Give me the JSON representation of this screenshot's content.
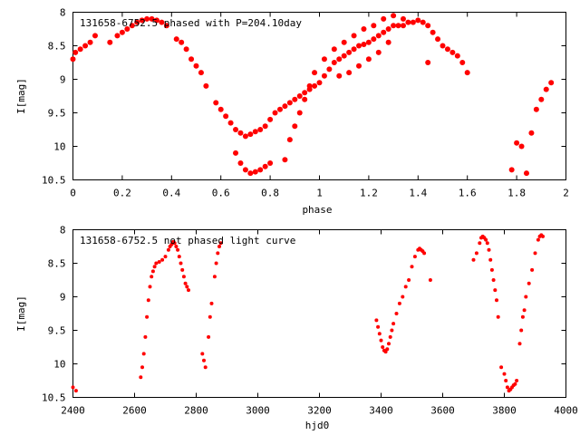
{
  "chart_data": [
    {
      "type": "scatter",
      "title": "131658-6752.5 phased with P=204.10day",
      "xlabel": "phase",
      "ylabel": "I[mag]",
      "xlim": [
        0,
        2
      ],
      "ylim": [
        10.5,
        8
      ],
      "y_inverted": true,
      "xticks": [
        "0",
        "0.2",
        "0.4",
        "0.6",
        "0.8",
        "1",
        "1.2",
        "1.4",
        "1.6",
        "1.8",
        "2"
      ],
      "yticks": [
        "8",
        "8.5",
        "9",
        "9.5",
        "10",
        "10.5"
      ],
      "grid": false,
      "marker_color": "#ff0000",
      "marker": "filled-circle",
      "series": [
        {
          "x": [
            0.0,
            0.01,
            0.03,
            0.05,
            0.07,
            0.09,
            0.15,
            0.18,
            0.2,
            0.22,
            0.24,
            0.26,
            0.28,
            0.3,
            0.32,
            0.34,
            0.36,
            0.38,
            0.42,
            0.44,
            0.46,
            0.48,
            0.5,
            0.52,
            0.54,
            0.58,
            0.6,
            0.62,
            0.64,
            0.66,
            0.68,
            0.7,
            0.72,
            0.74,
            0.76,
            0.78,
            0.8,
            0.82,
            0.84,
            0.86,
            0.88,
            0.9,
            0.92,
            0.94,
            0.96,
            0.98,
            1.0,
            1.02,
            1.04,
            1.06,
            1.08,
            1.1,
            1.12,
            1.14,
            1.16,
            1.18,
            1.2,
            1.22,
            1.24,
            1.26,
            1.28,
            1.3,
            1.32,
            1.34,
            1.36,
            1.38,
            1.4,
            1.42,
            1.44,
            1.46,
            1.48,
            1.5,
            1.52,
            1.54,
            1.56,
            1.58,
            1.6,
            1.78,
            1.8,
            1.82,
            1.84,
            1.86,
            1.88,
            1.9,
            1.92,
            1.94,
            0.66,
            0.68,
            0.7,
            0.72,
            0.74,
            0.76,
            0.78,
            0.8,
            0.86,
            0.88,
            0.9,
            0.92,
            0.94,
            0.96,
            0.98,
            1.02,
            1.06,
            1.1,
            1.14,
            1.18,
            1.22,
            1.26,
            1.3,
            1.34,
            1.28,
            1.24,
            1.2,
            1.16,
            1.12,
            1.08,
            1.44
          ],
          "y": [
            8.7,
            8.6,
            8.55,
            8.5,
            8.45,
            8.35,
            8.45,
            8.35,
            8.3,
            8.25,
            8.2,
            8.15,
            8.12,
            8.1,
            8.1,
            8.12,
            8.15,
            8.2,
            8.4,
            8.45,
            8.55,
            8.7,
            8.8,
            8.9,
            9.1,
            9.35,
            9.45,
            9.55,
            9.65,
            9.75,
            9.8,
            9.85,
            9.82,
            9.78,
            9.75,
            9.7,
            9.6,
            9.5,
            9.45,
            9.4,
            9.35,
            9.3,
            9.25,
            9.2,
            9.15,
            9.1,
            9.05,
            8.95,
            8.85,
            8.75,
            8.7,
            8.65,
            8.6,
            8.55,
            8.5,
            8.48,
            8.45,
            8.4,
            8.35,
            8.3,
            8.25,
            8.2,
            8.2,
            8.2,
            8.15,
            8.15,
            8.12,
            8.15,
            8.2,
            8.3,
            8.4,
            8.5,
            8.55,
            8.6,
            8.65,
            8.75,
            8.9,
            10.35,
            9.95,
            10.0,
            10.4,
            9.8,
            9.45,
            9.3,
            9.15,
            9.05,
            10.1,
            10.25,
            10.35,
            10.4,
            10.38,
            10.35,
            10.3,
            10.25,
            10.2,
            9.9,
            9.7,
            9.5,
            9.3,
            9.1,
            8.9,
            8.7,
            8.55,
            8.45,
            8.35,
            8.25,
            8.2,
            8.1,
            8.05,
            8.1,
            8.45,
            8.6,
            8.7,
            8.8,
            8.9,
            8.95,
            8.75
          ]
        }
      ]
    },
    {
      "type": "scatter",
      "title": "131658-6752.5 not phased light curve",
      "xlabel": "hjd0",
      "ylabel": "I[mag]",
      "xlim": [
        2400,
        4000
      ],
      "ylim": [
        10.5,
        8
      ],
      "y_inverted": true,
      "xticks": [
        "2400",
        "2600",
        "2800",
        "3000",
        "3200",
        "3400",
        "3600",
        "3800",
        "4000"
      ],
      "yticks": [
        "8",
        "8.5",
        "9",
        "9.5",
        "10",
        "10.5"
      ],
      "grid": false,
      "marker_color": "#ff0000",
      "marker": "filled-circle",
      "series": [
        {
          "x": [
            2400,
            2410,
            2620,
            2625,
            2630,
            2635,
            2640,
            2645,
            2650,
            2655,
            2660,
            2665,
            2670,
            2680,
            2690,
            2700,
            2710,
            2715,
            2720,
            2725,
            2730,
            2735,
            2740,
            2745,
            2750,
            2755,
            2760,
            2765,
            2770,
            2775,
            2820,
            2825,
            2830,
            2840,
            2845,
            2850,
            2860,
            2865,
            2870,
            2875,
            2880,
            3385,
            3390,
            3395,
            3400,
            3405,
            3410,
            3415,
            3420,
            3425,
            3430,
            3435,
            3440,
            3450,
            3460,
            3470,
            3480,
            3490,
            3500,
            3510,
            3520,
            3525,
            3530,
            3535,
            3540,
            3560,
            3700,
            3710,
            3720,
            3725,
            3730,
            3735,
            3740,
            3745,
            3750,
            3755,
            3760,
            3765,
            3770,
            3775,
            3780,
            3790,
            3800,
            3805,
            3810,
            3815,
            3820,
            3825,
            3830,
            3835,
            3840,
            3850,
            3855,
            3860,
            3865,
            3870,
            3880,
            3890,
            3900,
            3910,
            3915,
            3920,
            3925
          ],
          "y": [
            10.35,
            10.4,
            10.2,
            10.05,
            9.85,
            9.6,
            9.3,
            9.05,
            8.85,
            8.7,
            8.62,
            8.55,
            8.5,
            8.48,
            8.45,
            8.4,
            8.3,
            8.25,
            8.22,
            8.18,
            8.2,
            8.25,
            8.3,
            8.4,
            8.5,
            8.6,
            8.7,
            8.8,
            8.85,
            8.9,
            9.85,
            9.95,
            10.05,
            9.6,
            9.3,
            9.1,
            8.7,
            8.5,
            8.35,
            8.25,
            8.2,
            9.35,
            9.45,
            9.55,
            9.65,
            9.75,
            9.8,
            9.82,
            9.78,
            9.7,
            9.6,
            9.5,
            9.4,
            9.25,
            9.1,
            9.0,
            8.85,
            8.75,
            8.55,
            8.4,
            8.3,
            8.28,
            8.3,
            8.32,
            8.35,
            8.75,
            8.45,
            8.35,
            8.2,
            8.12,
            8.1,
            8.12,
            8.15,
            8.2,
            8.3,
            8.45,
            8.6,
            8.75,
            8.9,
            9.05,
            9.3,
            10.05,
            10.15,
            10.25,
            10.35,
            10.4,
            10.38,
            10.35,
            10.32,
            10.3,
            10.25,
            9.7,
            9.5,
            9.3,
            9.2,
            9.0,
            8.8,
            8.6,
            8.35,
            8.15,
            8.1,
            8.08,
            8.1
          ]
        }
      ]
    }
  ]
}
